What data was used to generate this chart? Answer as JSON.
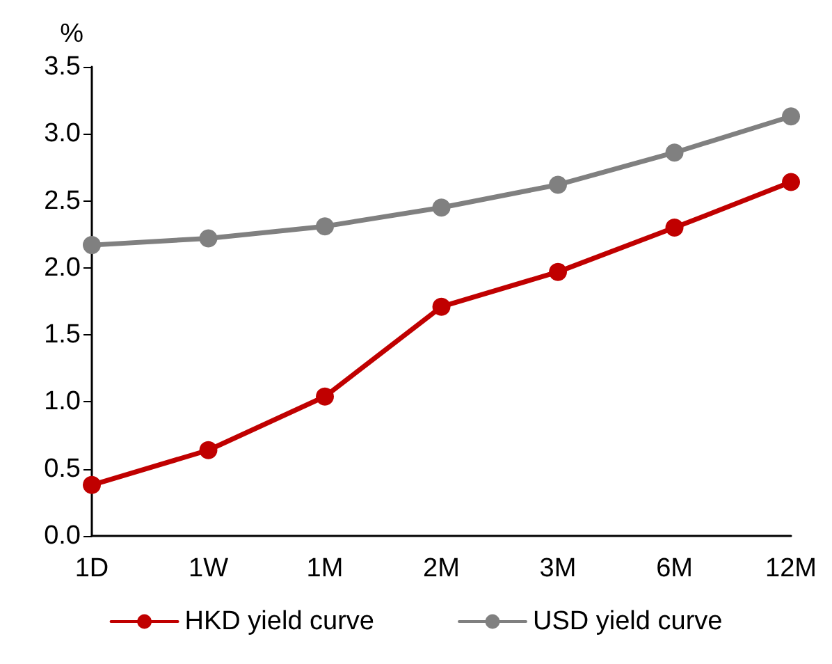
{
  "chart_data": {
    "type": "line",
    "ylabel": "%",
    "categories": [
      "1D",
      "1W",
      "1M",
      "2M",
      "3M",
      "6M",
      "12M"
    ],
    "series": [
      {
        "name": "HKD yield curve",
        "color": "#c00000",
        "values": [
          0.38,
          0.64,
          1.04,
          1.71,
          1.97,
          2.3,
          2.64
        ]
      },
      {
        "name": "USD yield curve",
        "color": "#808080",
        "values": [
          2.17,
          2.22,
          2.31,
          2.45,
          2.62,
          2.86,
          3.13
        ]
      }
    ],
    "ylim": [
      0,
      3.5
    ],
    "yticks": [
      {
        "value": 0,
        "label": "0.0"
      },
      0.5,
      {
        "value": 1,
        "label": "1.0"
      },
      1.5,
      {
        "value": 2,
        "label": "2.0"
      },
      2.5,
      {
        "value": 3,
        "label": "3.0"
      },
      3.5
    ],
    "grid": false,
    "legend": "bottom",
    "marker": "circle",
    "line_style": "solid"
  }
}
